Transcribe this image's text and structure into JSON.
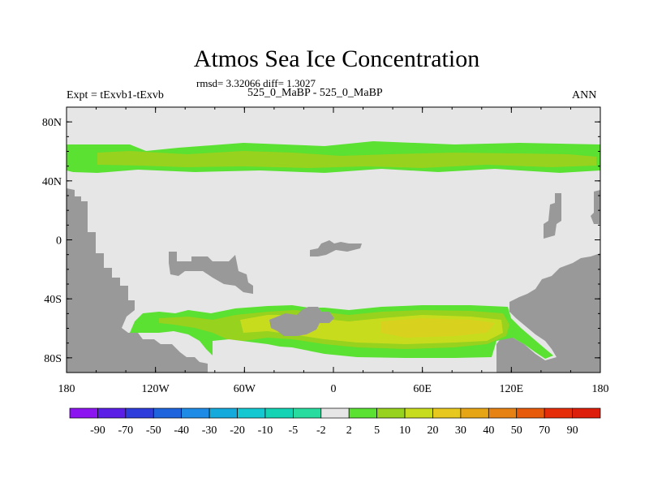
{
  "title": "Atmos Sea Ice Concentration",
  "stats_line": "rmsd= 3.32066 diff= 1.3027",
  "subtitle": "525_0_MaBP - 525_0_MaBP",
  "expt_label": "Expt = tExvb1-tExvb",
  "season_label": "ANN",
  "chart_data": {
    "type": "heatmap",
    "projection": "cylindrical equidistant",
    "xlim": [
      -180,
      180
    ],
    "ylim": [
      -90,
      90
    ],
    "x_ticks": [
      {
        "value": -180,
        "label": "180"
      },
      {
        "value": -120,
        "label": "120W"
      },
      {
        "value": -60,
        "label": "60W"
      },
      {
        "value": 0,
        "label": "0"
      },
      {
        "value": 60,
        "label": "60E"
      },
      {
        "value": 120,
        "label": "120E"
      },
      {
        "value": 180,
        "label": "180"
      }
    ],
    "y_ticks": [
      {
        "value": 80,
        "label": "80N"
      },
      {
        "value": 40,
        "label": "40N"
      },
      {
        "value": 0,
        "label": "0"
      },
      {
        "value": -40,
        "label": "40S"
      },
      {
        "value": -80,
        "label": "80S"
      }
    ],
    "background_color": "#e6e6e6",
    "land_color": "#999999",
    "colorbar": {
      "labels": [
        "-90",
        "-70",
        "-50",
        "-40",
        "-30",
        "-20",
        "-10",
        "-5",
        "-2",
        "2",
        "5",
        "10",
        "20",
        "30",
        "40",
        "50",
        "70",
        "90"
      ],
      "colors": [
        "#8c14f0",
        "#5a1ee6",
        "#2f3cdc",
        "#1e64dc",
        "#1e8ce6",
        "#14aadc",
        "#14c8d2",
        "#14d2b4",
        "#28dca0",
        "#e6e6e6",
        "#5ae132",
        "#96d21e",
        "#c8dc1e",
        "#e6c81e",
        "#e6a514",
        "#e68214",
        "#e65a0a",
        "#e62d0a",
        "#dc1e0a"
      ]
    },
    "regions": [
      {
        "name": "northern-ice-band",
        "category": "5",
        "lon": [
          -180,
          180
        ],
        "lat": [
          44,
          64
        ]
      },
      {
        "name": "northern-band-core",
        "category": "10",
        "lon": [
          -170,
          180
        ],
        "lat": [
          47,
          60
        ]
      },
      {
        "name": "southern-ice-ring",
        "category": "5",
        "lon": [
          -152,
          150
        ],
        "lat": [
          -82,
          -47
        ]
      },
      {
        "name": "southern-ring-core",
        "category": "20",
        "lon": [
          -60,
          110
        ],
        "lat": [
          -74,
          -54
        ]
      },
      {
        "name": "southern-ring-west",
        "category": "10",
        "lon": [
          -140,
          -60
        ],
        "lat": [
          -70,
          -52
        ]
      }
    ]
  }
}
